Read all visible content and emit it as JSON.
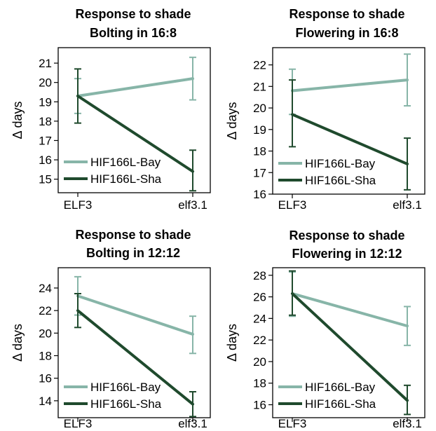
{
  "colors": {
    "bay": "#87b5a8",
    "sha": "#1f4a2d",
    "axis": "#000000",
    "background": "#ffffff"
  },
  "chart_data": [
    {
      "type": "line",
      "title": "Response to shade",
      "subtitle": "Bolting in 16:8",
      "xlabel": "",
      "ylabel": "Δ days",
      "categories": [
        "ELF3",
        "elf3.1"
      ],
      "ylim": [
        14.3,
        21.8
      ],
      "yticks": [
        15,
        16,
        17,
        18,
        19,
        20,
        21
      ],
      "grid": false,
      "legend_position": "bottom-left",
      "series": [
        {
          "name": "HIF166L-Bay",
          "color": "#87b5a8",
          "values": [
            19.3,
            20.2
          ],
          "err_low": [
            18.4,
            19.1
          ],
          "err_high": [
            20.2,
            21.3
          ]
        },
        {
          "name": "HIF166L-Sha",
          "color": "#1f4a2d",
          "values": [
            19.3,
            15.4
          ],
          "err_low": [
            17.9,
            14.4
          ],
          "err_high": [
            20.7,
            16.5
          ]
        }
      ]
    },
    {
      "type": "line",
      "title": "Response to shade",
      "subtitle": "Flowering in 16:8",
      "xlabel": "",
      "ylabel": "Δ days",
      "categories": [
        "ELF3",
        "elf3.1"
      ],
      "ylim": [
        16,
        22.8
      ],
      "yticks": [
        16,
        17,
        18,
        19,
        20,
        21,
        22
      ],
      "grid": false,
      "legend_position": "bottom-left",
      "series": [
        {
          "name": "HIF166L-Bay",
          "color": "#87b5a8",
          "values": [
            20.8,
            21.3
          ],
          "err_low": [
            19.7,
            20.1
          ],
          "err_high": [
            21.8,
            22.5
          ]
        },
        {
          "name": "HIF166L-Sha",
          "color": "#1f4a2d",
          "values": [
            19.7,
            17.4
          ],
          "err_low": [
            18.2,
            16.2
          ],
          "err_high": [
            21.3,
            18.6
          ]
        }
      ]
    },
    {
      "type": "line",
      "title": "Response to shade",
      "subtitle": "Bolting in 12:12",
      "xlabel": "",
      "ylabel": "Δ days",
      "categories": [
        "ELF3",
        "elf3.1"
      ],
      "ylim": [
        12.5,
        25.8
      ],
      "yticks": [
        14,
        16,
        18,
        20,
        22,
        24
      ],
      "grid": false,
      "legend_position": "bottom-left",
      "series": [
        {
          "name": "HIF166L-Bay",
          "color": "#87b5a8",
          "values": [
            23.3,
            19.9
          ],
          "err_low": [
            21.6,
            18.2
          ],
          "err_high": [
            25.0,
            21.5
          ]
        },
        {
          "name": "HIF166L-Sha",
          "color": "#1f4a2d",
          "values": [
            22.0,
            13.7
          ],
          "err_low": [
            20.5,
            12.6
          ],
          "err_high": [
            23.5,
            14.8
          ]
        }
      ]
    },
    {
      "type": "line",
      "title": "Response to shade",
      "subtitle": "Flowering in 12:12",
      "xlabel": "",
      "ylabel": "Δ days",
      "categories": [
        "ELF3",
        "elf3.1"
      ],
      "ylim": [
        14.8,
        28.7
      ],
      "yticks": [
        16,
        18,
        20,
        22,
        24,
        26,
        28
      ],
      "grid": false,
      "legend_position": "bottom-left",
      "series": [
        {
          "name": "HIF166L-Bay",
          "color": "#87b5a8",
          "values": [
            26.3,
            23.3
          ],
          "err_low": [
            24.2,
            21.5
          ],
          "err_high": [
            28.3,
            25.1
          ]
        },
        {
          "name": "HIF166L-Sha",
          "color": "#1f4a2d",
          "values": [
            26.3,
            16.4
          ],
          "err_low": [
            24.3,
            15.1
          ],
          "err_high": [
            28.4,
            17.8
          ]
        }
      ]
    }
  ]
}
